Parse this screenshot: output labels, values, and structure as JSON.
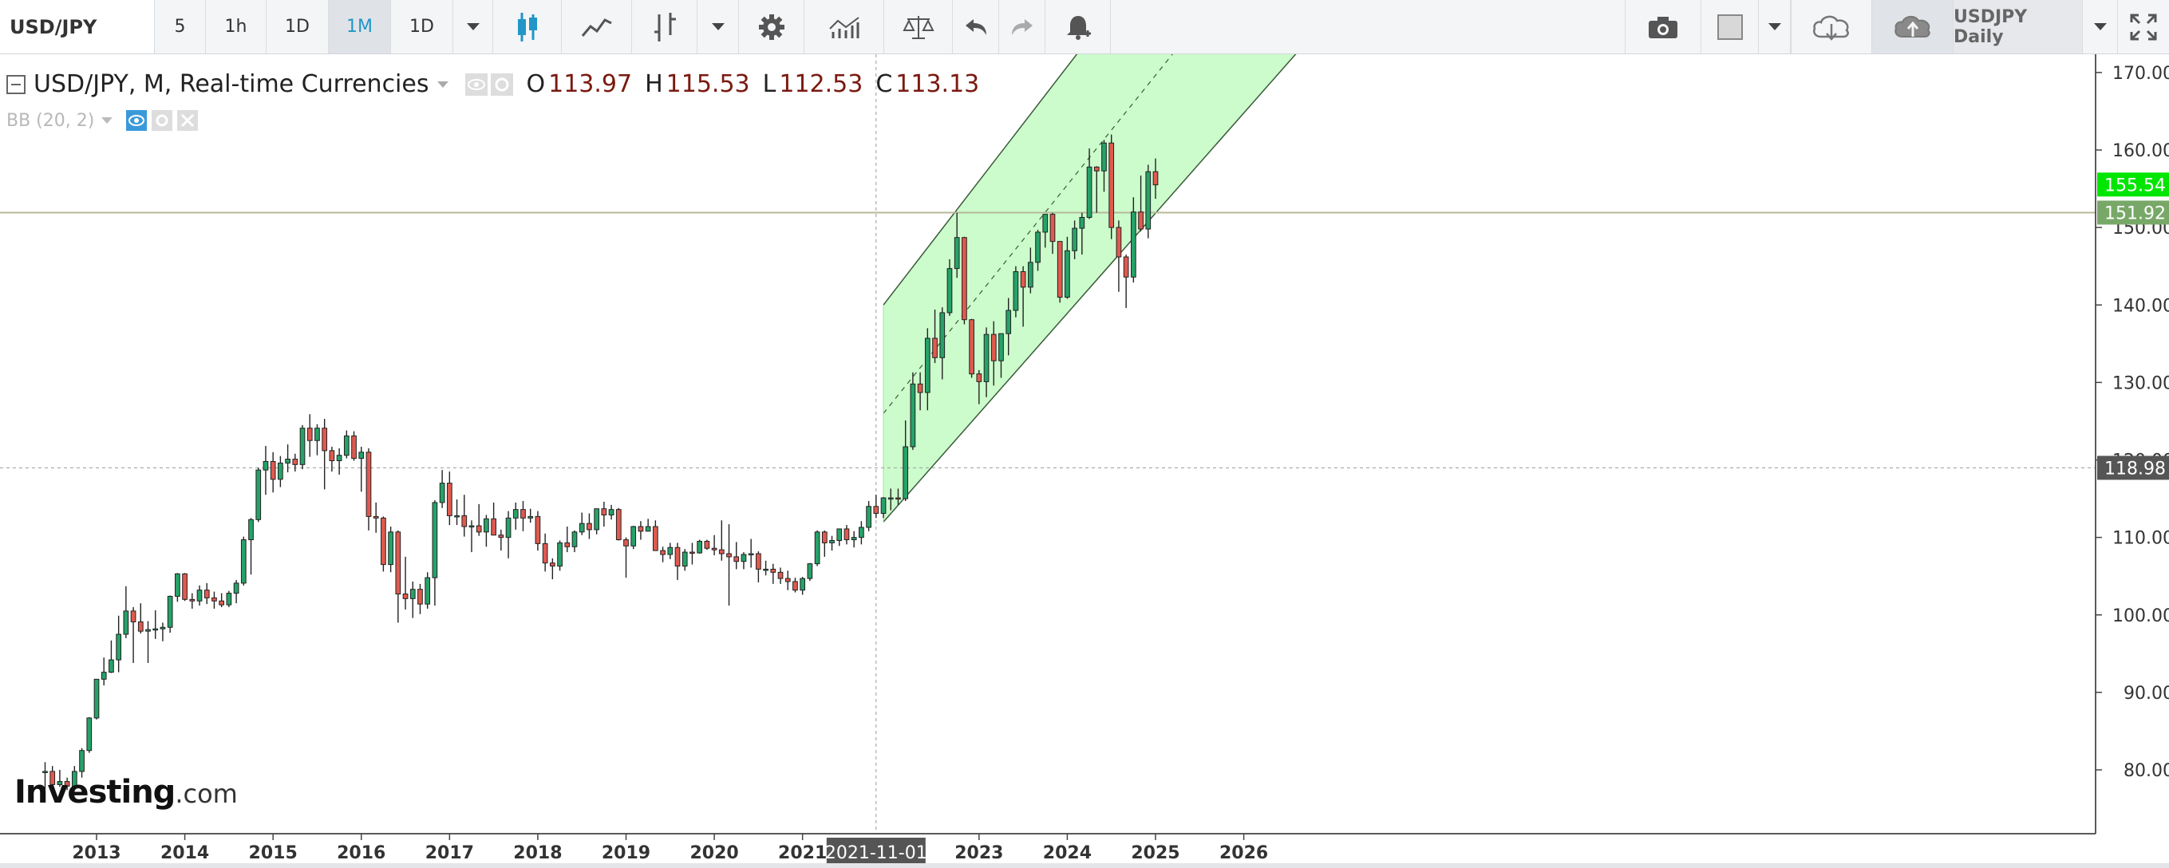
{
  "toolbar": {
    "symbol": "USD/JPY",
    "intervals": [
      "5",
      "1h",
      "1D",
      "1M",
      "1D"
    ],
    "active_interval": "1M",
    "layout_name": "USDJPY Daily",
    "icons": [
      "candles-icon",
      "line-chart-icon",
      "bars-icon",
      "dropdown-icon",
      "gear-icon",
      "indicators-icon",
      "compare-icon",
      "undo-icon",
      "redo-icon",
      "alert-icon",
      "camera-icon",
      "color-square-icon",
      "cloud-download-icon",
      "cloud-upload-icon",
      "fullscreen-icon"
    ]
  },
  "legend": {
    "title": "USD/JPY, M, Real-time Currencies",
    "open_label": "O",
    "open": "113.97",
    "high_label": "H",
    "high": "115.53",
    "low_label": "L",
    "low": "112.53",
    "close_label": "C",
    "close": "113.13",
    "indicator": "BB (20, 2)"
  },
  "watermark": {
    "brand": "Investing",
    "domain": ".com"
  },
  "chart_data": {
    "type": "candlestick",
    "title": "USD/JPY, M, Real-time Currencies",
    "y_ticks": [
      "80.00",
      "90.00",
      "100.00",
      "110.00",
      "120.00",
      "130.00",
      "140.00",
      "150.00",
      "160.00",
      "170.00"
    ],
    "x_ticks": [
      "2013",
      "2014",
      "2015",
      "2016",
      "2017",
      "2018",
      "2019",
      "2020",
      "2021",
      "2023",
      "2024",
      "2025",
      "2026"
    ],
    "ylim": [
      73,
      172
    ],
    "xlim": [
      "2012-06",
      "2026-07"
    ],
    "crosshair": {
      "date_label": "2021-11-01",
      "price_label": "118.98",
      "price": 118.98
    },
    "price_labels": [
      {
        "value": 155.54,
        "text": "155.54",
        "color": "#00e600"
      },
      {
        "value": 151.92,
        "text": "151.92",
        "color": "#78a868"
      }
    ],
    "horizontal_line": 151.92,
    "colors": {
      "up": "#26a269",
      "down": "#e05a4f",
      "channel_fill": "#ccfccc"
    },
    "channel": {
      "lower": [
        [
          "2021-12",
          112.0
        ],
        [
          "2026-04",
          168.0
        ]
      ],
      "upper": [
        [
          "2021-12",
          140.0
        ],
        [
          "2024-02",
          172.0
        ]
      ],
      "middle": [
        [
          "2021-12",
          126.0
        ],
        [
          "2025-03",
          172.0
        ]
      ]
    },
    "candles": [
      [
        "2012-06",
        79.8,
        81.0,
        77.5,
        79.8
      ],
      [
        "2012-07",
        79.8,
        80.5,
        77.6,
        78.1
      ],
      [
        "2012-08",
        78.1,
        80.0,
        77.8,
        78.5
      ],
      [
        "2012-09",
        78.5,
        79.0,
        77.4,
        77.9
      ],
      [
        "2012-10",
        77.9,
        80.5,
        77.8,
        79.8
      ],
      [
        "2012-11",
        79.8,
        82.8,
        79.0,
        82.5
      ],
      [
        "2012-12",
        82.5,
        86.8,
        82.2,
        86.7
      ],
      [
        "2013-01",
        86.7,
        91.7,
        86.5,
        91.7
      ],
      [
        "2013-02",
        91.7,
        94.5,
        90.9,
        92.6
      ],
      [
        "2013-03",
        92.6,
        96.7,
        92.5,
        94.2
      ],
      [
        "2013-04",
        94.2,
        99.9,
        92.6,
        97.5
      ],
      [
        "2013-05",
        97.5,
        103.7,
        97.0,
        100.5
      ],
      [
        "2013-06",
        100.5,
        101.0,
        93.8,
        99.1
      ],
      [
        "2013-07",
        99.1,
        101.5,
        97.6,
        97.9
      ],
      [
        "2013-08",
        97.9,
        99.2,
        93.8,
        98.1
      ],
      [
        "2013-09",
        98.1,
        100.6,
        96.9,
        98.2
      ],
      [
        "2013-10",
        98.2,
        99.0,
        96.6,
        98.4
      ],
      [
        "2013-11",
        98.4,
        102.5,
        97.7,
        102.4
      ],
      [
        "2013-12",
        102.4,
        105.4,
        101.7,
        105.3
      ],
      [
        "2014-01",
        105.3,
        105.4,
        101.8,
        102.0
      ],
      [
        "2014-02",
        102.0,
        102.8,
        100.8,
        101.8
      ],
      [
        "2014-03",
        101.8,
        103.8,
        101.2,
        103.2
      ],
      [
        "2014-04",
        103.2,
        104.1,
        101.4,
        102.2
      ],
      [
        "2014-05",
        102.2,
        103.0,
        100.8,
        101.8
      ],
      [
        "2014-06",
        101.8,
        102.8,
        101.0,
        101.3
      ],
      [
        "2014-07",
        101.3,
        103.1,
        101.0,
        102.8
      ],
      [
        "2014-08",
        102.8,
        104.5,
        101.5,
        104.1
      ],
      [
        "2014-09",
        104.1,
        110.1,
        103.8,
        109.7
      ],
      [
        "2014-10",
        109.7,
        112.5,
        105.2,
        112.3
      ],
      [
        "2014-11",
        112.3,
        119.0,
        112.0,
        118.7
      ],
      [
        "2014-12",
        118.7,
        121.8,
        115.5,
        119.8
      ],
      [
        "2015-01",
        119.8,
        121.0,
        115.8,
        117.5
      ],
      [
        "2015-02",
        117.5,
        120.5,
        116.5,
        119.6
      ],
      [
        "2015-03",
        119.6,
        122.0,
        118.4,
        120.1
      ],
      [
        "2015-04",
        120.1,
        120.8,
        118.5,
        119.4
      ],
      [
        "2015-05",
        119.4,
        124.5,
        118.8,
        124.1
      ],
      [
        "2015-06",
        124.1,
        125.9,
        120.4,
        122.5
      ],
      [
        "2015-07",
        122.5,
        124.6,
        120.6,
        124.1
      ],
      [
        "2015-08",
        124.1,
        125.3,
        116.2,
        121.2
      ],
      [
        "2015-09",
        121.2,
        121.7,
        118.5,
        119.9
      ],
      [
        "2015-10",
        119.9,
        121.5,
        118.1,
        120.6
      ],
      [
        "2015-11",
        120.6,
        123.8,
        120.2,
        123.1
      ],
      [
        "2015-12",
        123.1,
        123.7,
        119.9,
        120.2
      ],
      [
        "2016-01",
        120.2,
        121.7,
        115.9,
        121.0
      ],
      [
        "2016-02",
        121.0,
        121.5,
        110.9,
        112.7
      ],
      [
        "2016-03",
        112.7,
        114.5,
        110.6,
        112.5
      ],
      [
        "2016-04",
        112.5,
        112.7,
        105.6,
        106.5
      ],
      [
        "2016-05",
        106.5,
        111.4,
        105.5,
        110.7
      ],
      [
        "2016-06",
        110.7,
        110.9,
        99.0,
        102.7
      ],
      [
        "2016-07",
        102.7,
        107.5,
        100.7,
        102.1
      ],
      [
        "2016-08",
        102.1,
        104.3,
        99.6,
        103.3
      ],
      [
        "2016-09",
        103.3,
        104.0,
        100.1,
        101.4
      ],
      [
        "2016-10",
        101.4,
        105.5,
        100.8,
        104.8
      ],
      [
        "2016-11",
        104.8,
        114.8,
        101.2,
        114.5
      ],
      [
        "2016-12",
        114.5,
        118.7,
        113.8,
        117.0
      ],
      [
        "2017-01",
        117.0,
        118.5,
        111.6,
        112.8
      ],
      [
        "2017-02",
        112.8,
        114.9,
        111.6,
        112.8
      ],
      [
        "2017-03",
        112.8,
        115.5,
        110.1,
        111.4
      ],
      [
        "2017-04",
        111.4,
        112.2,
        108.1,
        111.5
      ],
      [
        "2017-05",
        111.5,
        114.3,
        110.2,
        110.7
      ],
      [
        "2017-06",
        110.7,
        112.9,
        108.8,
        112.4
      ],
      [
        "2017-07",
        112.4,
        114.5,
        110.6,
        110.3
      ],
      [
        "2017-08",
        110.3,
        111.0,
        108.3,
        110.0
      ],
      [
        "2017-09",
        110.0,
        113.4,
        107.3,
        112.5
      ],
      [
        "2017-10",
        112.5,
        114.5,
        111.0,
        113.6
      ],
      [
        "2017-11",
        113.6,
        114.7,
        110.8,
        112.5
      ],
      [
        "2017-12",
        112.5,
        113.7,
        111.9,
        112.7
      ],
      [
        "2018-01",
        112.7,
        113.4,
        108.3,
        109.2
      ],
      [
        "2018-02",
        109.2,
        110.5,
        105.6,
        106.7
      ],
      [
        "2018-03",
        106.7,
        107.3,
        104.6,
        106.3
      ],
      [
        "2018-04",
        106.3,
        109.6,
        105.7,
        109.3
      ],
      [
        "2018-05",
        109.3,
        111.4,
        108.1,
        108.8
      ],
      [
        "2018-06",
        108.8,
        110.9,
        108.1,
        110.7
      ],
      [
        "2018-07",
        110.7,
        113.2,
        110.3,
        111.8
      ],
      [
        "2018-08",
        111.8,
        113.1,
        109.8,
        111.0
      ],
      [
        "2018-09",
        111.0,
        113.7,
        110.4,
        113.7
      ],
      [
        "2018-10",
        113.7,
        114.6,
        111.4,
        112.9
      ],
      [
        "2018-11",
        112.9,
        114.2,
        112.3,
        113.6
      ],
      [
        "2018-12",
        113.6,
        113.8,
        109.6,
        109.7
      ],
      [
        "2019-01",
        109.7,
        110.0,
        104.8,
        108.9
      ],
      [
        "2019-02",
        108.9,
        111.5,
        108.5,
        111.4
      ],
      [
        "2019-03",
        111.4,
        112.1,
        109.7,
        110.8
      ],
      [
        "2019-04",
        110.8,
        112.4,
        110.8,
        111.4
      ],
      [
        "2019-05",
        111.4,
        112.2,
        108.3,
        108.3
      ],
      [
        "2019-06",
        108.3,
        108.8,
        106.8,
        107.8
      ],
      [
        "2019-07",
        107.8,
        109.3,
        107.2,
        108.7
      ],
      [
        "2019-08",
        108.7,
        109.3,
        104.5,
        106.3
      ],
      [
        "2019-09",
        106.3,
        108.5,
        105.7,
        108.1
      ],
      [
        "2019-10",
        108.1,
        109.3,
        106.5,
        108.0
      ],
      [
        "2019-11",
        108.0,
        109.7,
        107.9,
        109.5
      ],
      [
        "2019-12",
        109.5,
        109.7,
        108.4,
        108.6
      ],
      [
        "2020-01",
        108.6,
        110.3,
        107.7,
        108.4
      ],
      [
        "2020-02",
        108.4,
        112.2,
        107.0,
        107.9
      ],
      [
        "2020-03",
        107.9,
        111.7,
        101.2,
        107.5
      ],
      [
        "2020-04",
        107.5,
        109.4,
        105.9,
        106.9
      ],
      [
        "2020-05",
        106.9,
        108.1,
        105.9,
        107.8
      ],
      [
        "2020-06",
        107.8,
        109.8,
        106.1,
        107.9
      ],
      [
        "2020-07",
        107.9,
        108.2,
        104.2,
        105.9
      ],
      [
        "2020-08",
        105.9,
        107.0,
        105.1,
        105.9
      ],
      [
        "2020-09",
        105.9,
        106.6,
        104.0,
        105.5
      ],
      [
        "2020-10",
        105.5,
        106.1,
        104.0,
        104.7
      ],
      [
        "2020-11",
        104.7,
        105.7,
        103.2,
        104.3
      ],
      [
        "2020-12",
        104.3,
        104.8,
        102.9,
        103.2
      ],
      [
        "2021-01",
        103.2,
        104.9,
        102.6,
        104.7
      ],
      [
        "2021-02",
        104.7,
        106.7,
        104.4,
        106.6
      ],
      [
        "2021-03",
        106.6,
        110.9,
        106.3,
        110.7
      ],
      [
        "2021-04",
        110.7,
        110.9,
        107.5,
        109.3
      ],
      [
        "2021-05",
        109.3,
        110.2,
        108.3,
        109.6
      ],
      [
        "2021-06",
        109.6,
        111.1,
        108.9,
        111.1
      ],
      [
        "2021-07",
        111.1,
        111.6,
        109.1,
        109.7
      ],
      [
        "2021-08",
        109.7,
        110.8,
        108.7,
        110.0
      ],
      [
        "2021-09",
        110.0,
        112.1,
        109.1,
        111.3
      ],
      [
        "2021-10",
        111.3,
        114.7,
        110.8,
        114.0
      ],
      [
        "2021-11",
        114.0,
        115.5,
        112.5,
        113.1
      ],
      [
        "2021-12",
        113.1,
        115.2,
        112.5,
        115.1
      ],
      [
        "2022-01",
        115.1,
        116.3,
        113.5,
        115.1
      ],
      [
        "2022-02",
        115.1,
        116.3,
        114.2,
        115.0
      ],
      [
        "2022-03",
        115.0,
        125.1,
        114.7,
        121.7
      ],
      [
        "2022-04",
        121.7,
        131.3,
        121.3,
        129.8
      ],
      [
        "2022-05",
        129.8,
        131.3,
        126.4,
        128.7
      ],
      [
        "2022-06",
        128.7,
        137.0,
        126.4,
        135.7
      ],
      [
        "2022-07",
        135.7,
        139.4,
        132.5,
        133.2
      ],
      [
        "2022-08",
        133.2,
        139.7,
        130.4,
        139.0
      ],
      [
        "2022-09",
        139.0,
        145.9,
        138.6,
        144.7
      ],
      [
        "2022-10",
        144.7,
        151.9,
        143.5,
        148.7
      ],
      [
        "2022-11",
        148.7,
        148.8,
        137.5,
        138.1
      ],
      [
        "2022-12",
        138.1,
        138.2,
        130.6,
        131.1
      ],
      [
        "2023-01",
        131.1,
        131.6,
        127.2,
        130.1
      ],
      [
        "2023-02",
        130.1,
        137.1,
        128.1,
        136.2
      ],
      [
        "2023-03",
        136.2,
        137.9,
        129.6,
        132.8
      ],
      [
        "2023-04",
        132.8,
        136.3,
        130.6,
        136.3
      ],
      [
        "2023-05",
        136.3,
        140.9,
        133.5,
        139.3
      ],
      [
        "2023-06",
        139.3,
        145.0,
        138.4,
        144.3
      ],
      [
        "2023-07",
        144.3,
        145.0,
        137.2,
        142.3
      ],
      [
        "2023-08",
        142.3,
        147.4,
        141.5,
        145.5
      ],
      [
        "2023-09",
        145.5,
        149.7,
        144.4,
        149.4
      ],
      [
        "2023-10",
        149.4,
        151.7,
        147.4,
        151.7
      ],
      [
        "2023-11",
        151.7,
        151.9,
        146.6,
        148.2
      ],
      [
        "2023-12",
        148.2,
        148.2,
        140.3,
        141.0
      ],
      [
        "2024-01",
        141.0,
        148.8,
        140.8,
        147.0
      ],
      [
        "2024-02",
        147.0,
        150.9,
        145.9,
        149.9
      ],
      [
        "2024-03",
        149.9,
        151.9,
        146.5,
        151.3
      ],
      [
        "2024-04",
        151.3,
        160.2,
        151.1,
        157.8
      ],
      [
        "2024-05",
        157.8,
        157.9,
        151.9,
        157.3
      ],
      [
        "2024-06",
        157.3,
        161.3,
        154.6,
        160.9
      ],
      [
        "2024-07",
        160.9,
        162.0,
        148.5,
        150.0
      ],
      [
        "2024-08",
        150.0,
        150.9,
        141.7,
        146.2
      ],
      [
        "2024-09",
        146.2,
        146.5,
        139.6,
        143.6
      ],
      [
        "2024-10",
        143.6,
        153.9,
        142.9,
        152.0
      ],
      [
        "2024-11",
        152.0,
        156.7,
        149.5,
        149.8
      ],
      [
        "2024-12",
        149.8,
        158.1,
        148.6,
        157.2
      ],
      [
        "2025-01",
        157.2,
        158.9,
        153.7,
        155.5
      ]
    ]
  }
}
